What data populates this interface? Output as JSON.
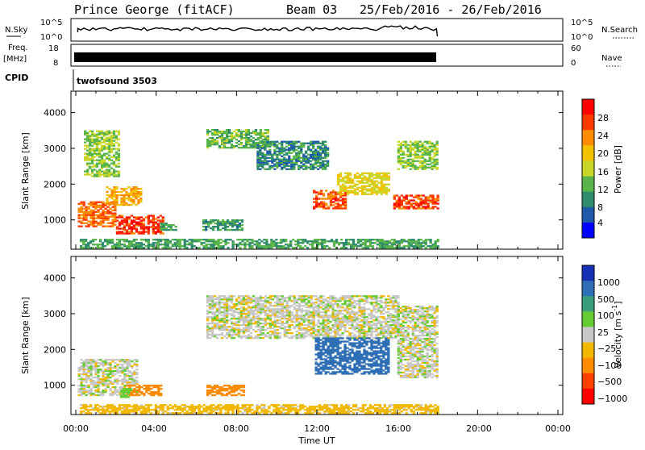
{
  "header": {
    "station": "Prince George (fitACF)",
    "beam": "Beam 03",
    "date_range": "25/Feb/2016 - 26/Feb/2016"
  },
  "noise_panel": {
    "left_label": "N.Sky",
    "right_label": "N.Search",
    "ticks": [
      "10^5",
      "10^0"
    ]
  },
  "freq_panel": {
    "left_label": "Freq.",
    "left_unit": "[MHz]",
    "right_label": "Nave",
    "left_ticks": [
      "18",
      "8"
    ],
    "right_ticks": [
      "60",
      "0"
    ]
  },
  "cpid_panel": {
    "label": "CPID",
    "program": "twofsound 3503"
  },
  "x_axis": {
    "label": "Time UT",
    "ticks": [
      "00:00",
      "04:00",
      "08:00",
      "12:00",
      "16:00",
      "20:00",
      "00:00"
    ]
  },
  "power_colorbar": {
    "label": "Power [dB]",
    "ticks": [
      "28",
      "24",
      "20",
      "16",
      "12",
      "8",
      "4"
    ],
    "colors": [
      "#ff0000",
      "#ff3a00",
      "#ff8c00",
      "#f2c200",
      "#c8d62a",
      "#59b54a",
      "#2e8b6b",
      "#1e5aa8",
      "#0000ff"
    ]
  },
  "velocity_colorbar": {
    "label": "Velocity [m s",
    "label_sup": "-1",
    "label_end": "]",
    "ticks": [
      "1000",
      "500",
      "100",
      "25",
      "−25",
      "−100",
      "−500",
      "−1000"
    ],
    "colors": [
      "#1530b5",
      "#2e6fb5",
      "#3b9e7a",
      "#66cc33",
      "#c8c8c8",
      "#f2b800",
      "#ff8c00",
      "#ff4000",
      "#ff0000"
    ]
  },
  "chart_data": [
    {
      "type": "heatmap",
      "title": "Power",
      "xlabel": "Time UT",
      "ylabel": "Slant Range [km]",
      "xlim": [
        0,
        24
      ],
      "ylim": [
        180,
        4600
      ],
      "yticks": [
        1000,
        2000,
        3000,
        4000
      ],
      "colorbar": {
        "label": "Power [dB]",
        "range": [
          0,
          32
        ]
      },
      "regions": [
        {
          "t": [
            0.1,
            2.0
          ],
          "r": [
            800,
            1500
          ],
          "value": 26
        },
        {
          "t": [
            1.5,
            3.2
          ],
          "r": [
            1400,
            1900
          ],
          "value": 22
        },
        {
          "t": [
            2.0,
            4.4
          ],
          "r": [
            600,
            1100
          ],
          "value": 29
        },
        {
          "t": [
            0.4,
            2.2
          ],
          "r": [
            2200,
            3500
          ],
          "value": 14
        },
        {
          "t": [
            4.2,
            5.0
          ],
          "r": [
            700,
            900
          ],
          "value": 10
        },
        {
          "t": [
            6.3,
            8.3
          ],
          "r": [
            700,
            1000
          ],
          "value": 9
        },
        {
          "t": [
            6.5,
            9.5
          ],
          "r": [
            3000,
            3500
          ],
          "value": 12
        },
        {
          "t": [
            9.0,
            12.5
          ],
          "r": [
            2400,
            3200
          ],
          "value": 8
        },
        {
          "t": [
            11.8,
            13.4
          ],
          "r": [
            1300,
            1800
          ],
          "value": 27
        },
        {
          "t": [
            13.0,
            15.6
          ],
          "r": [
            1700,
            2300
          ],
          "value": 18
        },
        {
          "t": [
            15.8,
            18.0
          ],
          "r": [
            1300,
            1700
          ],
          "value": 28
        },
        {
          "t": [
            16.0,
            18.0
          ],
          "r": [
            2400,
            3200
          ],
          "value": 14
        },
        {
          "t": [
            0.2,
            18.0
          ],
          "r": [
            200,
            450
          ],
          "value": 10
        }
      ]
    },
    {
      "type": "heatmap",
      "title": "Velocity",
      "xlabel": "Time UT",
      "ylabel": "Slant Range [km]",
      "xlim": [
        0,
        24
      ],
      "ylim": [
        180,
        4600
      ],
      "yticks": [
        1000,
        2000,
        3000,
        4000
      ],
      "colorbar": {
        "label": "Velocity [m s-1]",
        "levels": [
          -1000,
          -500,
          -100,
          -25,
          25,
          100,
          500,
          1000
        ]
      },
      "regions": [
        {
          "t": [
            0.1,
            3.0
          ],
          "r": [
            700,
            1700
          ],
          "value": 0
        },
        {
          "t": [
            2.5,
            4.3
          ],
          "r": [
            700,
            1000
          ],
          "value": -150
        },
        {
          "t": [
            2.2,
            2.8
          ],
          "r": [
            650,
            900
          ],
          "value": 60
        },
        {
          "t": [
            6.5,
            8.3
          ],
          "r": [
            700,
            1000
          ],
          "value": -200
        },
        {
          "t": [
            6.5,
            16.0
          ],
          "r": [
            2300,
            3500
          ],
          "value": 0
        },
        {
          "t": [
            11.9,
            15.6
          ],
          "r": [
            1300,
            2300
          ],
          "value": 400
        },
        {
          "t": [
            16.0,
            18.0
          ],
          "r": [
            1200,
            3200
          ],
          "value": 0
        },
        {
          "t": [
            0.2,
            18.0
          ],
          "r": [
            200,
            450
          ],
          "value": -60
        }
      ]
    }
  ]
}
